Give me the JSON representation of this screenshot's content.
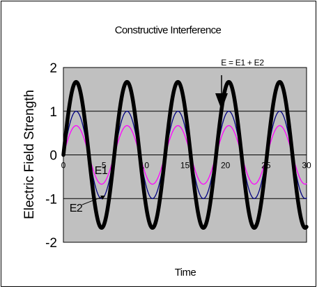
{
  "chart_data": {
    "type": "line",
    "title": "Constructive Interference",
    "xlabel": "Time",
    "ylabel": "Electric Field Strength",
    "xlim": [
      0,
      30
    ],
    "ylim": [
      -2,
      2
    ],
    "x_ticks": [
      0,
      5,
      10,
      15,
      20,
      25,
      30
    ],
    "x_tick_labels": [
      "0",
      "5",
      "10",
      "15",
      "20",
      "25",
      "30"
    ],
    "y_ticks": [
      -2,
      -1,
      0,
      1,
      2
    ],
    "y_tick_labels": [
      "-2",
      "-1",
      "0",
      "1",
      "2"
    ],
    "grid": "horizontal",
    "period": 6.28,
    "series": [
      {
        "name": "E1",
        "amplitude": 1.0,
        "color": "#000080",
        "style": "thin"
      },
      {
        "name": "E2",
        "amplitude": 0.67,
        "color": "#ff00ff",
        "style": "thin"
      },
      {
        "name": "E = E1 + E2",
        "amplitude": 1.67,
        "color": "#000000",
        "style": "thick"
      }
    ],
    "annotations": {
      "sum_label": "E = E1 + E2",
      "e1_label": "E1",
      "e2_label": "E2"
    },
    "colors": {
      "plot_background": "#c0c0c0",
      "grid": "#000000",
      "frame": "#000000"
    }
  }
}
